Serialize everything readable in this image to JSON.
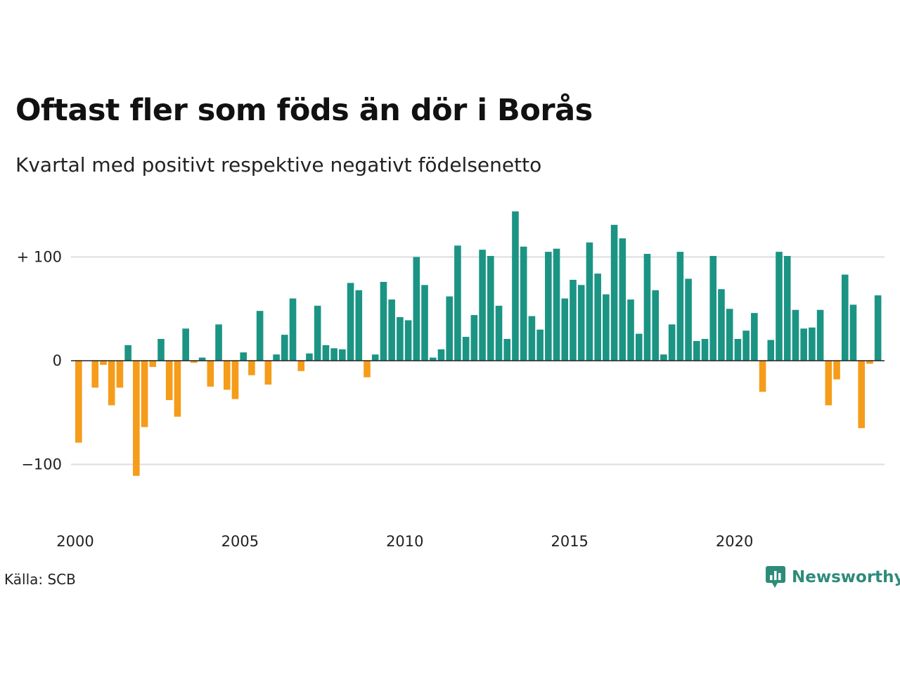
{
  "header": {
    "title": "Oftast fler som föds än dör i Borås",
    "subtitle": "Kvartal med positivt respektive negativt födelsenetto"
  },
  "footer": {
    "source": "Källa: SCB",
    "brand": "Newsworthy",
    "brand_icon": "chart-speech-bubble-icon"
  },
  "colors": {
    "positive": "#1b9484",
    "negative": "#f59c1a",
    "grid": "#dddddd",
    "baseline": "#222222",
    "brand": "#2e8b7a"
  },
  "chart_data": {
    "type": "bar",
    "title": "Oftast fler som föds än dör i Borås",
    "subtitle": "Kvartal med positivt respektive negativt födelsenetto",
    "xlabel": "",
    "ylabel": "",
    "ylim": [
      -150,
      150
    ],
    "grid": true,
    "x_ticks": [
      {
        "value": 2000,
        "label": "2000"
      },
      {
        "value": 2005,
        "label": "2005"
      },
      {
        "value": 2010,
        "label": "2010"
      },
      {
        "value": 2015,
        "label": "2015"
      },
      {
        "value": 2020,
        "label": "2020"
      }
    ],
    "y_ticks": [
      {
        "value": 100,
        "label": "+ 100"
      },
      {
        "value": 0,
        "label": "0"
      },
      {
        "value": -100,
        "label": "−100"
      }
    ],
    "start_year": 2000,
    "periods_per_year": 4,
    "values": [
      -79,
      0,
      -26,
      -4,
      -43,
      -26,
      15,
      -111,
      -64,
      -6,
      21,
      -38,
      -54,
      31,
      -2,
      3,
      -25,
      35,
      -28,
      -37,
      8,
      -14,
      48,
      -23,
      6,
      25,
      60,
      -10,
      7,
      53,
      15,
      12,
      11,
      75,
      68,
      -16,
      6,
      76,
      59,
      42,
      39,
      100,
      73,
      3,
      11,
      62,
      111,
      23,
      44,
      107,
      101,
      53,
      21,
      144,
      110,
      43,
      30,
      105,
      108,
      60,
      78,
      73,
      114,
      84,
      64,
      131,
      118,
      59,
      26,
      103,
      68,
      6,
      35,
      105,
      79,
      19,
      21,
      101,
      69,
      50,
      21,
      29,
      46,
      -30,
      20,
      105,
      101,
      49,
      31,
      32,
      49,
      -43,
      -18,
      83,
      54,
      -65,
      -3,
      63
    ]
  }
}
